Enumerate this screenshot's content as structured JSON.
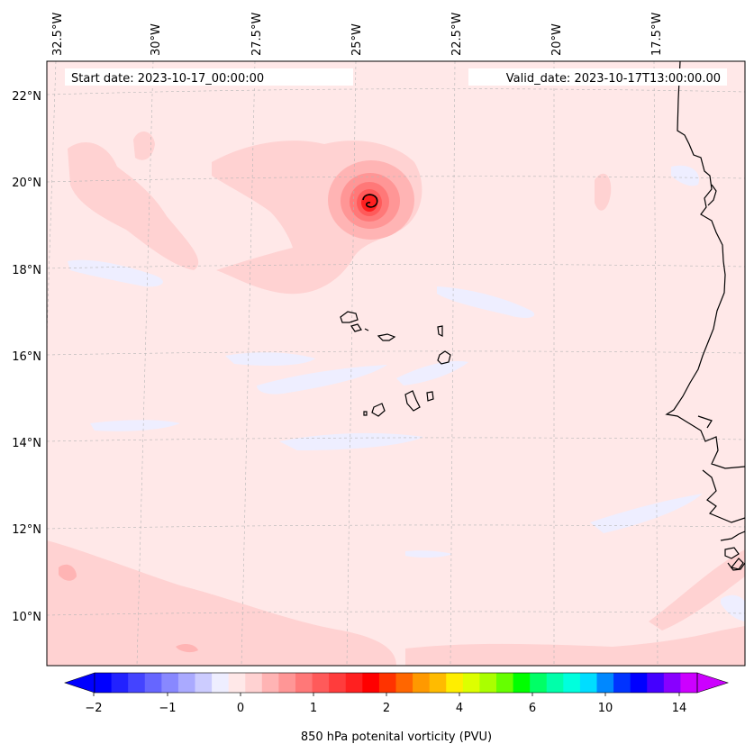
{
  "header": {
    "start_date": "Start date: 2023-10-17_00:00:00",
    "valid_date": "Valid_date: 2023-10-17T13:00:00.00"
  },
  "longitude_ticks": [
    "32.5°W",
    "30°W",
    "27.5°W",
    "25°W",
    "22.5°W",
    "20°W",
    "17.5°W"
  ],
  "latitude_ticks": [
    "22°N",
    "20°N",
    "18°N",
    "16°N",
    "14°N",
    "12°N",
    "10°N"
  ],
  "colorbar": {
    "label": "850 hPa potenital vorticity (PVU)",
    "tick_labels": [
      "−2",
      "−1",
      "0",
      "1",
      "2",
      "4",
      "6",
      "10",
      "14"
    ],
    "colors": [
      "#0000ff",
      "#2222ff",
      "#4444ff",
      "#6666ff",
      "#8888ff",
      "#aaaaff",
      "#ccccff",
      "#eeeeff",
      "#ffe8e8",
      "#ffd2d2",
      "#ffb4b4",
      "#ff9696",
      "#ff7878",
      "#ff5a5a",
      "#ff3c3c",
      "#ff2020",
      "#ff0000",
      "#ff3300",
      "#ff6600",
      "#ff9900",
      "#ffbb00",
      "#ffee00",
      "#ddff00",
      "#aaff00",
      "#66ff00",
      "#00ff00",
      "#00ff66",
      "#00ffaa",
      "#00ffdd",
      "#00ddff",
      "#0088ff",
      "#0033ff",
      "#0000ff",
      "#4400ff",
      "#8800ff",
      "#cc00ff"
    ],
    "under_color": "#0000ff",
    "over_color": "#cc00ff"
  },
  "field_colors": {
    "background": "#ffe8e8",
    "light_positive": "#ffd2d2",
    "medium_positive": "#ffb4b4",
    "strong_positive": "#ff7878",
    "core": "#ff2020",
    "negative": "#eeeeff"
  }
}
